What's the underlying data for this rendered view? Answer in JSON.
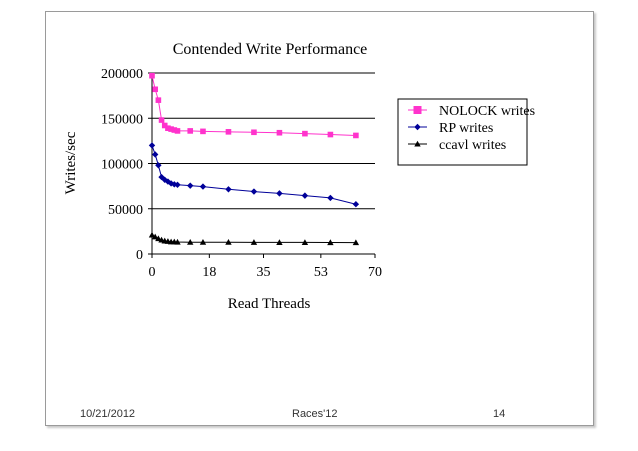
{
  "chart_data": {
    "type": "line",
    "title": "Contended Write Performance",
    "xlabel": "Read Threads",
    "ylabel": "Writes/sec",
    "xlim": [
      0,
      70
    ],
    "ylim": [
      0,
      200000
    ],
    "xticks": [
      0,
      18,
      35,
      53,
      70
    ],
    "yticks": [
      0,
      50000,
      100000,
      150000,
      200000
    ],
    "grid": "horizontal",
    "legend_position": "right",
    "series": [
      {
        "name": "NOLOCK writes",
        "color": "#ff33cc",
        "marker": "square",
        "x": [
          0,
          1,
          2,
          3,
          4,
          5,
          6,
          7,
          8,
          12,
          16,
          24,
          32,
          40,
          48,
          56,
          64
        ],
        "y": [
          197000,
          182000,
          170000,
          148000,
          142000,
          139000,
          138000,
          137000,
          136000,
          136000,
          135500,
          135000,
          134500,
          134000,
          133000,
          132000,
          131000
        ]
      },
      {
        "name": "RP writes",
        "color": "#000099",
        "marker": "diamond",
        "x": [
          0,
          1,
          2,
          3,
          4,
          5,
          6,
          7,
          8,
          12,
          16,
          24,
          32,
          40,
          48,
          56,
          64
        ],
        "y": [
          120000,
          110000,
          98000,
          85000,
          82000,
          80000,
          78000,
          77000,
          76500,
          75500,
          74500,
          71500,
          69000,
          67000,
          64500,
          62000,
          55000
        ]
      },
      {
        "name": "ccavl writes",
        "color": "#000000",
        "marker": "triangle",
        "x": [
          0,
          1,
          2,
          3,
          4,
          5,
          6,
          7,
          8,
          12,
          16,
          24,
          32,
          40,
          48,
          56,
          64
        ],
        "y": [
          21000,
          19000,
          17000,
          15500,
          14500,
          14000,
          13500,
          13500,
          13200,
          13000,
          13000,
          13000,
          12900,
          12800,
          12800,
          12700,
          12600
        ]
      }
    ]
  },
  "footer": {
    "date": "10/21/2012",
    "center": "Races'12",
    "page": "14"
  }
}
